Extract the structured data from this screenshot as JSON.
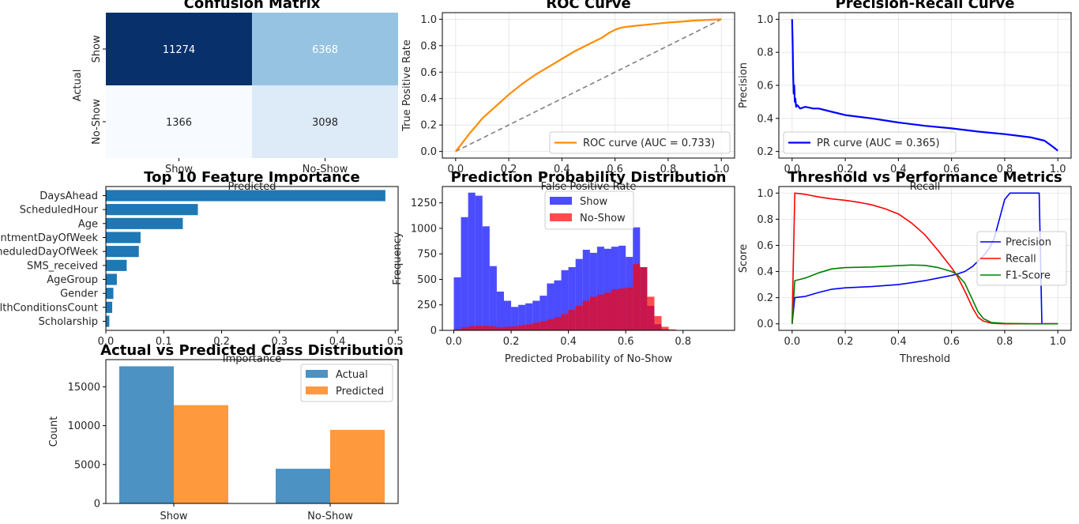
{
  "chart_data": [
    {
      "type": "heatmap",
      "title": "Confusion Matrix",
      "xlabel": "Predicted",
      "ylabel": "Actual",
      "x_categories": [
        "Show",
        "No-Show"
      ],
      "y_categories": [
        "Show",
        "No-Show"
      ],
      "values": [
        [
          11274,
          6368
        ],
        [
          1366,
          3098
        ]
      ],
      "colormap": "Blues"
    },
    {
      "type": "line",
      "title": "ROC Curve",
      "xlabel": "False Positive Rate",
      "ylabel": "True Positive Rate",
      "xlim": [
        -0.05,
        1.05
      ],
      "ylim": [
        -0.05,
        1.05
      ],
      "xticks": [
        "0.0",
        "0.2",
        "0.4",
        "0.6",
        "0.8",
        "1.0"
      ],
      "yticks": [
        "0.0",
        "0.2",
        "0.4",
        "0.6",
        "0.8",
        "1.0"
      ],
      "grid": true,
      "legend_position": "lower right",
      "series": [
        {
          "name": "ROC curve (AUC = 0.733)",
          "color": "#ff8c00",
          "style": "solid",
          "x": [
            0,
            0.02,
            0.05,
            0.08,
            0.1,
            0.15,
            0.2,
            0.25,
            0.3,
            0.35,
            0.4,
            0.45,
            0.5,
            0.55,
            0.58,
            0.6,
            0.62,
            0.65,
            0.7,
            0.75,
            0.8,
            0.85,
            0.9,
            0.95,
            1.0
          ],
          "y": [
            0,
            0.05,
            0.13,
            0.2,
            0.25,
            0.34,
            0.43,
            0.51,
            0.58,
            0.64,
            0.7,
            0.76,
            0.81,
            0.86,
            0.9,
            0.92,
            0.935,
            0.945,
            0.955,
            0.965,
            0.975,
            0.982,
            0.99,
            0.995,
            1.0
          ]
        },
        {
          "name": "",
          "color": "#808080",
          "style": "dashed",
          "x": [
            0,
            1
          ],
          "y": [
            0,
            1
          ]
        }
      ]
    },
    {
      "type": "line",
      "title": "Precision-Recall Curve",
      "xlabel": "Recall",
      "ylabel": "Precision",
      "xlim": [
        -0.05,
        1.05
      ],
      "ylim": [
        0.16,
        1.04
      ],
      "xticks": [
        "0.0",
        "0.2",
        "0.4",
        "0.6",
        "0.8",
        "1.0"
      ],
      "yticks": [
        "0.2",
        "0.4",
        "0.6",
        "0.8",
        "1.0"
      ],
      "grid": true,
      "legend_position": "lower left",
      "series": [
        {
          "name": "PR curve (AUC = 0.365)",
          "color": "#0000ff",
          "x": [
            0,
            0.002,
            0.004,
            0.006,
            0.008,
            0.01,
            0.012,
            0.015,
            0.02,
            0.03,
            0.05,
            0.08,
            0.1,
            0.15,
            0.2,
            0.3,
            0.4,
            0.5,
            0.6,
            0.7,
            0.8,
            0.9,
            0.95,
            0.98,
            1.0
          ],
          "y": [
            1.0,
            0.85,
            0.65,
            0.55,
            0.6,
            0.5,
            0.52,
            0.47,
            0.48,
            0.46,
            0.47,
            0.46,
            0.46,
            0.44,
            0.42,
            0.4,
            0.375,
            0.355,
            0.34,
            0.32,
            0.305,
            0.285,
            0.265,
            0.23,
            0.205
          ]
        }
      ]
    },
    {
      "type": "bar",
      "orientation": "horizontal",
      "title": "Top 10 Feature Importance",
      "xlabel": "Importance",
      "ylabel": "",
      "xlim": [
        0,
        0.505
      ],
      "xticks": [
        "0.0",
        "0.1",
        "0.2",
        "0.3",
        "0.4",
        "0.5"
      ],
      "color": "#1f77b4",
      "categories": [
        "DaysAhead",
        "ScheduledHour",
        "Age",
        "AppointmentDayOfWeek",
        "ScheduledDayOfWeek",
        "SMS_received",
        "AgeGroup",
        "Gender",
        "HealthConditionsCount",
        "Scholarship"
      ],
      "values": [
        0.483,
        0.159,
        0.133,
        0.06,
        0.057,
        0.036,
        0.019,
        0.013,
        0.011,
        0.006
      ]
    },
    {
      "type": "bar",
      "subtype": "histogram",
      "title": "Prediction Probability Distribution",
      "xlabel": "Predicted Probability of No-Show",
      "ylabel": "Frequency",
      "xlim": [
        -0.04,
        0.98
      ],
      "ylim": [
        0,
        1410
      ],
      "xticks": [
        "0.0",
        "0.2",
        "0.4",
        "0.6",
        "0.8"
      ],
      "yticks": [
        "0",
        "250",
        "500",
        "750",
        "1000",
        "1250"
      ],
      "legend_position": "upper center",
      "bin_width": 0.025,
      "bin_start": 0.0,
      "series": [
        {
          "name": "Show",
          "color": "#0000ff",
          "alpha": 0.7,
          "values": [
            520,
            1110,
            1350,
            1320,
            1020,
            630,
            380,
            290,
            230,
            250,
            265,
            290,
            340,
            460,
            490,
            590,
            620,
            700,
            790,
            760,
            820,
            800,
            820,
            830,
            720,
            1010,
            620,
            240,
            60,
            10
          ]
        },
        {
          "name": "No-Show",
          "color": "#ff0000",
          "alpha": 0.7,
          "values": [
            10,
            30,
            40,
            45,
            45,
            40,
            30,
            35,
            40,
            50,
            60,
            75,
            90,
            110,
            130,
            160,
            200,
            240,
            290,
            330,
            350,
            370,
            400,
            410,
            420,
            650,
            620,
            330,
            140,
            35,
            10
          ]
        }
      ]
    },
    {
      "type": "line",
      "title": "Threshold vs Performance Metrics",
      "xlabel": "Threshold",
      "ylabel": "Score",
      "xlim": [
        -0.05,
        1.05
      ],
      "ylim": [
        -0.05,
        1.05
      ],
      "xticks": [
        "0.0",
        "0.2",
        "0.4",
        "0.6",
        "0.8",
        "1.0"
      ],
      "yticks": [
        "0.0",
        "0.2",
        "0.4",
        "0.6",
        "0.8",
        "1.0"
      ],
      "grid": true,
      "legend_position": "center right",
      "series": [
        {
          "name": "Precision",
          "color": "#0000ff",
          "x": [
            0,
            0.01,
            0.05,
            0.1,
            0.15,
            0.2,
            0.3,
            0.4,
            0.5,
            0.55,
            0.6,
            0.62,
            0.65,
            0.68,
            0.7,
            0.72,
            0.74,
            0.76,
            0.78,
            0.8,
            0.82,
            0.85,
            0.9,
            0.93,
            0.94,
            0.95,
            1.0
          ],
          "y": [
            0.0,
            0.2,
            0.21,
            0.24,
            0.265,
            0.275,
            0.285,
            0.3,
            0.33,
            0.35,
            0.37,
            0.38,
            0.4,
            0.44,
            0.48,
            0.52,
            0.57,
            0.65,
            0.8,
            0.95,
            1.0,
            1.0,
            1.0,
            1.0,
            0.0,
            0.0,
            0.0
          ]
        },
        {
          "name": "Recall",
          "color": "#ff0000",
          "x": [
            0,
            0.01,
            0.05,
            0.1,
            0.15,
            0.2,
            0.25,
            0.3,
            0.35,
            0.4,
            0.45,
            0.5,
            0.55,
            0.6,
            0.62,
            0.65,
            0.68,
            0.7,
            0.72,
            0.75,
            0.8,
            0.9,
            1.0
          ],
          "y": [
            0.0,
            1.0,
            0.99,
            0.97,
            0.955,
            0.945,
            0.93,
            0.91,
            0.88,
            0.84,
            0.77,
            0.68,
            0.56,
            0.43,
            0.37,
            0.25,
            0.12,
            0.05,
            0.02,
            0.005,
            0.0,
            0.0,
            0.0
          ]
        },
        {
          "name": "F1-Score",
          "color": "#008000",
          "x": [
            0,
            0.01,
            0.05,
            0.1,
            0.15,
            0.2,
            0.3,
            0.4,
            0.45,
            0.5,
            0.55,
            0.6,
            0.62,
            0.65,
            0.68,
            0.7,
            0.72,
            0.75,
            0.8,
            0.9,
            1.0
          ],
          "y": [
            0.0,
            0.33,
            0.35,
            0.39,
            0.42,
            0.43,
            0.435,
            0.445,
            0.45,
            0.447,
            0.43,
            0.4,
            0.38,
            0.31,
            0.18,
            0.09,
            0.04,
            0.01,
            0.003,
            0.0,
            0.0
          ]
        }
      ]
    },
    {
      "type": "bar",
      "title": "Actual vs Predicted Class Distribution",
      "xlabel": "",
      "ylabel": "Count",
      "ylim": [
        0,
        18500
      ],
      "yticks": [
        "0",
        "5000",
        "10000",
        "15000"
      ],
      "categories": [
        "Show",
        "No-Show"
      ],
      "legend_position": "upper right",
      "series": [
        {
          "name": "Actual",
          "color": "#1f77b4",
          "alpha": 0.8,
          "values": [
            17642,
            4464
          ]
        },
        {
          "name": "Predicted",
          "color": "#ff7f0e",
          "alpha": 0.8,
          "values": [
            12640,
            9466
          ]
        }
      ]
    }
  ]
}
